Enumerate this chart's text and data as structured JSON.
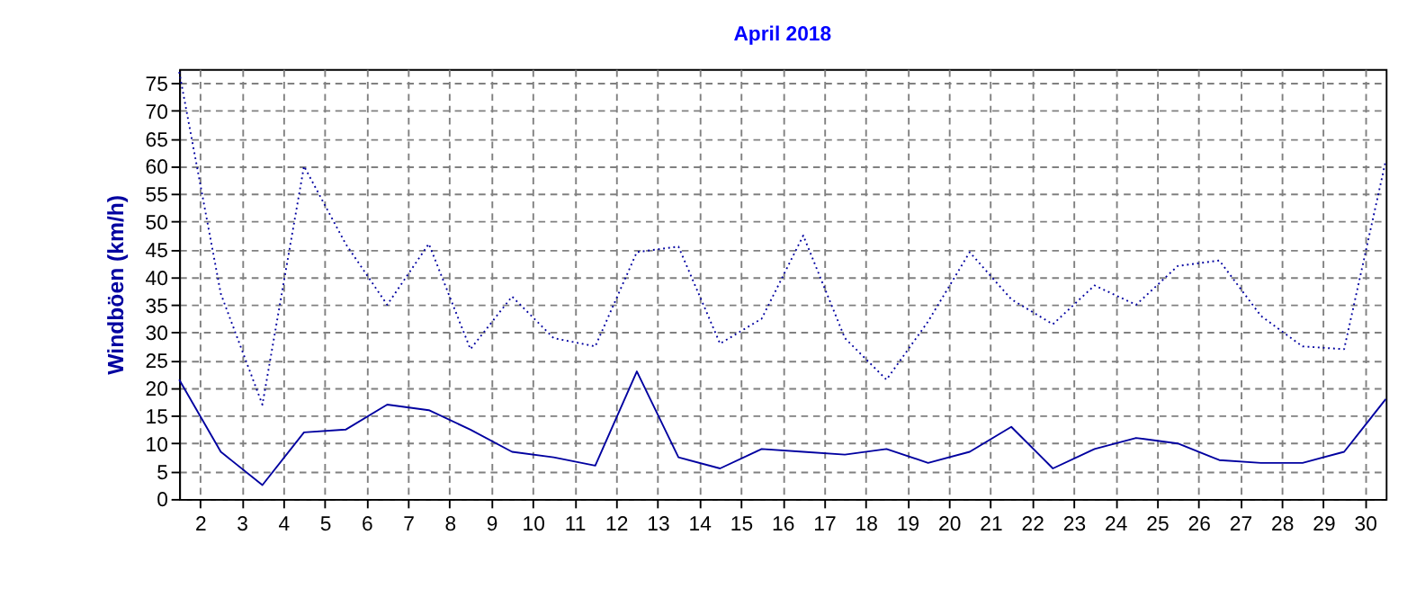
{
  "chart_data": {
    "type": "line",
    "title": "April 2018",
    "ylabel": "Windböen (km/h)",
    "x": [
      1.5,
      2.5,
      3.5,
      4.5,
      5.5,
      6.5,
      7.5,
      8.5,
      9.5,
      10.5,
      11.5,
      12.5,
      13.5,
      14.5,
      15.5,
      16.5,
      17.5,
      18.5,
      19.5,
      20.5,
      21.5,
      22.5,
      23.5,
      24.5,
      25.5,
      26.5,
      27.5,
      28.5,
      29.5,
      30.5
    ],
    "series": [
      {
        "color": "#0000a0",
        "line_style": "dotted",
        "values": [
          77,
          37,
          17,
          60,
          46,
          35,
          46,
          27,
          36.5,
          29,
          27.5,
          44.5,
          45.5,
          28,
          32.5,
          47.5,
          29,
          21.5,
          32,
          44.5,
          36,
          31.5,
          38.5,
          35,
          42,
          43,
          33,
          27.5,
          27,
          61
        ]
      },
      {
        "color": "#0000a0",
        "line_style": "solid",
        "values": [
          21.5,
          8.5,
          2.5,
          12,
          12.5,
          17,
          16,
          12.5,
          8.5,
          7.5,
          6,
          23,
          7.5,
          5.5,
          9,
          8.5,
          8,
          9,
          6.5,
          8.5,
          13,
          5.5,
          9,
          11,
          10,
          7,
          6.5,
          6.5,
          8.5,
          18
        ]
      }
    ],
    "xlim": [
      1.5,
      30.5
    ],
    "xticks": [
      2,
      3,
      4,
      5,
      6,
      7,
      8,
      9,
      10,
      11,
      12,
      13,
      14,
      15,
      16,
      17,
      18,
      19,
      20,
      21,
      22,
      23,
      24,
      25,
      26,
      27,
      28,
      29,
      30
    ],
    "ylim": [
      0,
      77.5
    ],
    "yticks": [
      0,
      5,
      10,
      15,
      20,
      25,
      30,
      35,
      40,
      45,
      50,
      55,
      60,
      65,
      70,
      75
    ],
    "grid": true
  }
}
